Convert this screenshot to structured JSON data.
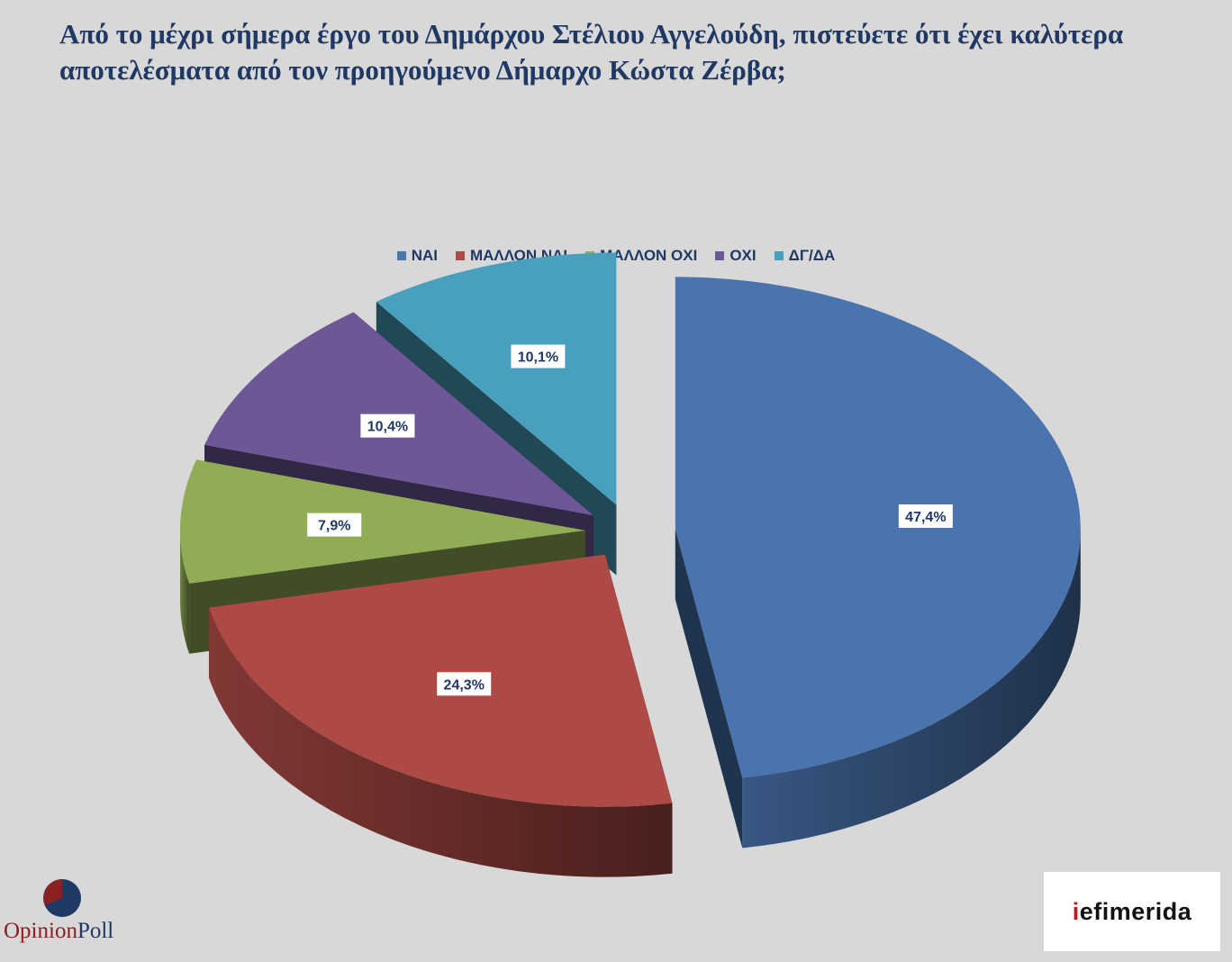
{
  "title": "Από το μέχρι σήμερα έργο του Δημάρχου Στέλιου Αγγελούδη, πιστεύετε ότι έχει καλύτερα αποτελέσματα από τον προηγούμενο Δήμαρχο Κώστα Ζέρβα;",
  "chart_data": {
    "type": "pie",
    "title": "Από το μέχρι σήμερα έργο του Δημάρχου Στέλιου Αγγελούδη, πιστεύετε ότι έχει καλύτερα αποτελέσματα από τον προηγούμενο Δήμαρχο Κώστα Ζέρβα;",
    "legend_position": "top",
    "style": "3d-exploded",
    "slices": [
      {
        "label": "ΝΑΙ",
        "value": 47.4,
        "display": "47,4%",
        "color": "#4a74ae"
      },
      {
        "label": "ΜΑΛΛΟΝ ΝΑΙ",
        "value": 24.3,
        "display": "24,3%",
        "color": "#ad4a46"
      },
      {
        "label": "ΜΑΛΛΟΝ ΟΧΙ",
        "value": 7.9,
        "display": "7,9%",
        "color": "#90ac55"
      },
      {
        "label": "ΟΧΙ",
        "value": 10.4,
        "display": "10,4%",
        "color": "#6e5796"
      },
      {
        "label": "ΔΓ/ΔΑ",
        "value": 10.1,
        "display": "10,1%",
        "color": "#48a0bc"
      }
    ]
  },
  "logos": {
    "opinionpoll": {
      "part1": "Opinion",
      "part2": "Poll"
    },
    "iefimerida": {
      "prefix": "i",
      "rest": "efimerida"
    }
  }
}
